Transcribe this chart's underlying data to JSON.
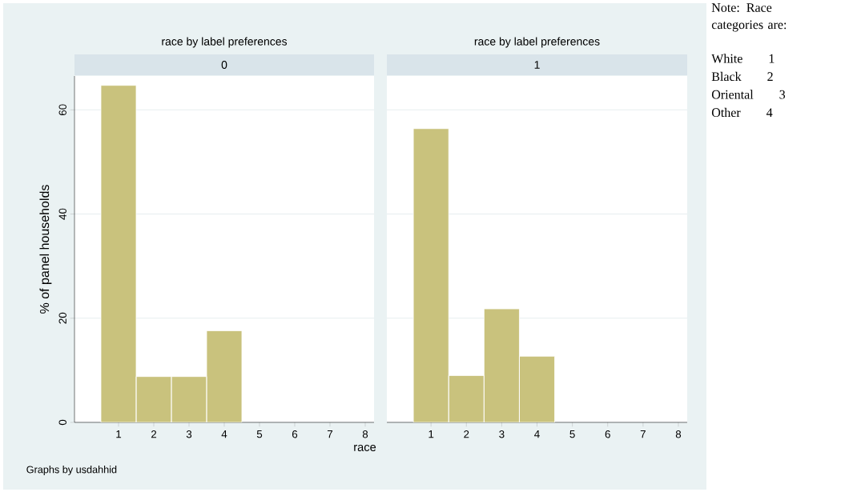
{
  "chart_data": [
    {
      "type": "histogram",
      "title": "race by label preferences",
      "subtitle": "0",
      "ylabel": "% of panel households",
      "bins": [
        0.5,
        1.5,
        2.5,
        3.5,
        4.5
      ],
      "values": [
        64.7,
        8.8,
        8.8,
        17.6
      ],
      "color": "#c9c27d",
      "xlim": [
        -0.25,
        8.25
      ],
      "ylim": [
        0,
        66.5
      ],
      "xticks": [
        1,
        2,
        3,
        4,
        5,
        6,
        7,
        8
      ],
      "yticks": [
        0,
        20,
        40,
        60
      ],
      "grid": "y",
      "annotations": [
        "Graphs by usdahhid"
      ]
    },
    {
      "type": "histogram",
      "title": "race by label preferences",
      "subtitle": "1",
      "xlabel": "race",
      "bins": [
        0.5,
        1.5,
        2.5,
        3.5,
        4.5
      ],
      "values": [
        56.4,
        9.0,
        21.8,
        12.7
      ],
      "color": "#c9c27d",
      "xlim": [
        -0.25,
        8.25
      ],
      "ylim": [
        0,
        66.5
      ],
      "xticks": [
        1,
        2,
        3,
        4,
        5,
        6,
        7,
        8
      ],
      "yticks": [
        0,
        20,
        40,
        60
      ],
      "grid": "y",
      "tick_labels": "x"
    },
    {
      "type": "other",
      "annotations": [
        "Note: Race categories are:",
        "White 1",
        "Black 2",
        "Oriental 3",
        "Other 4"
      ]
    }
  ]
}
